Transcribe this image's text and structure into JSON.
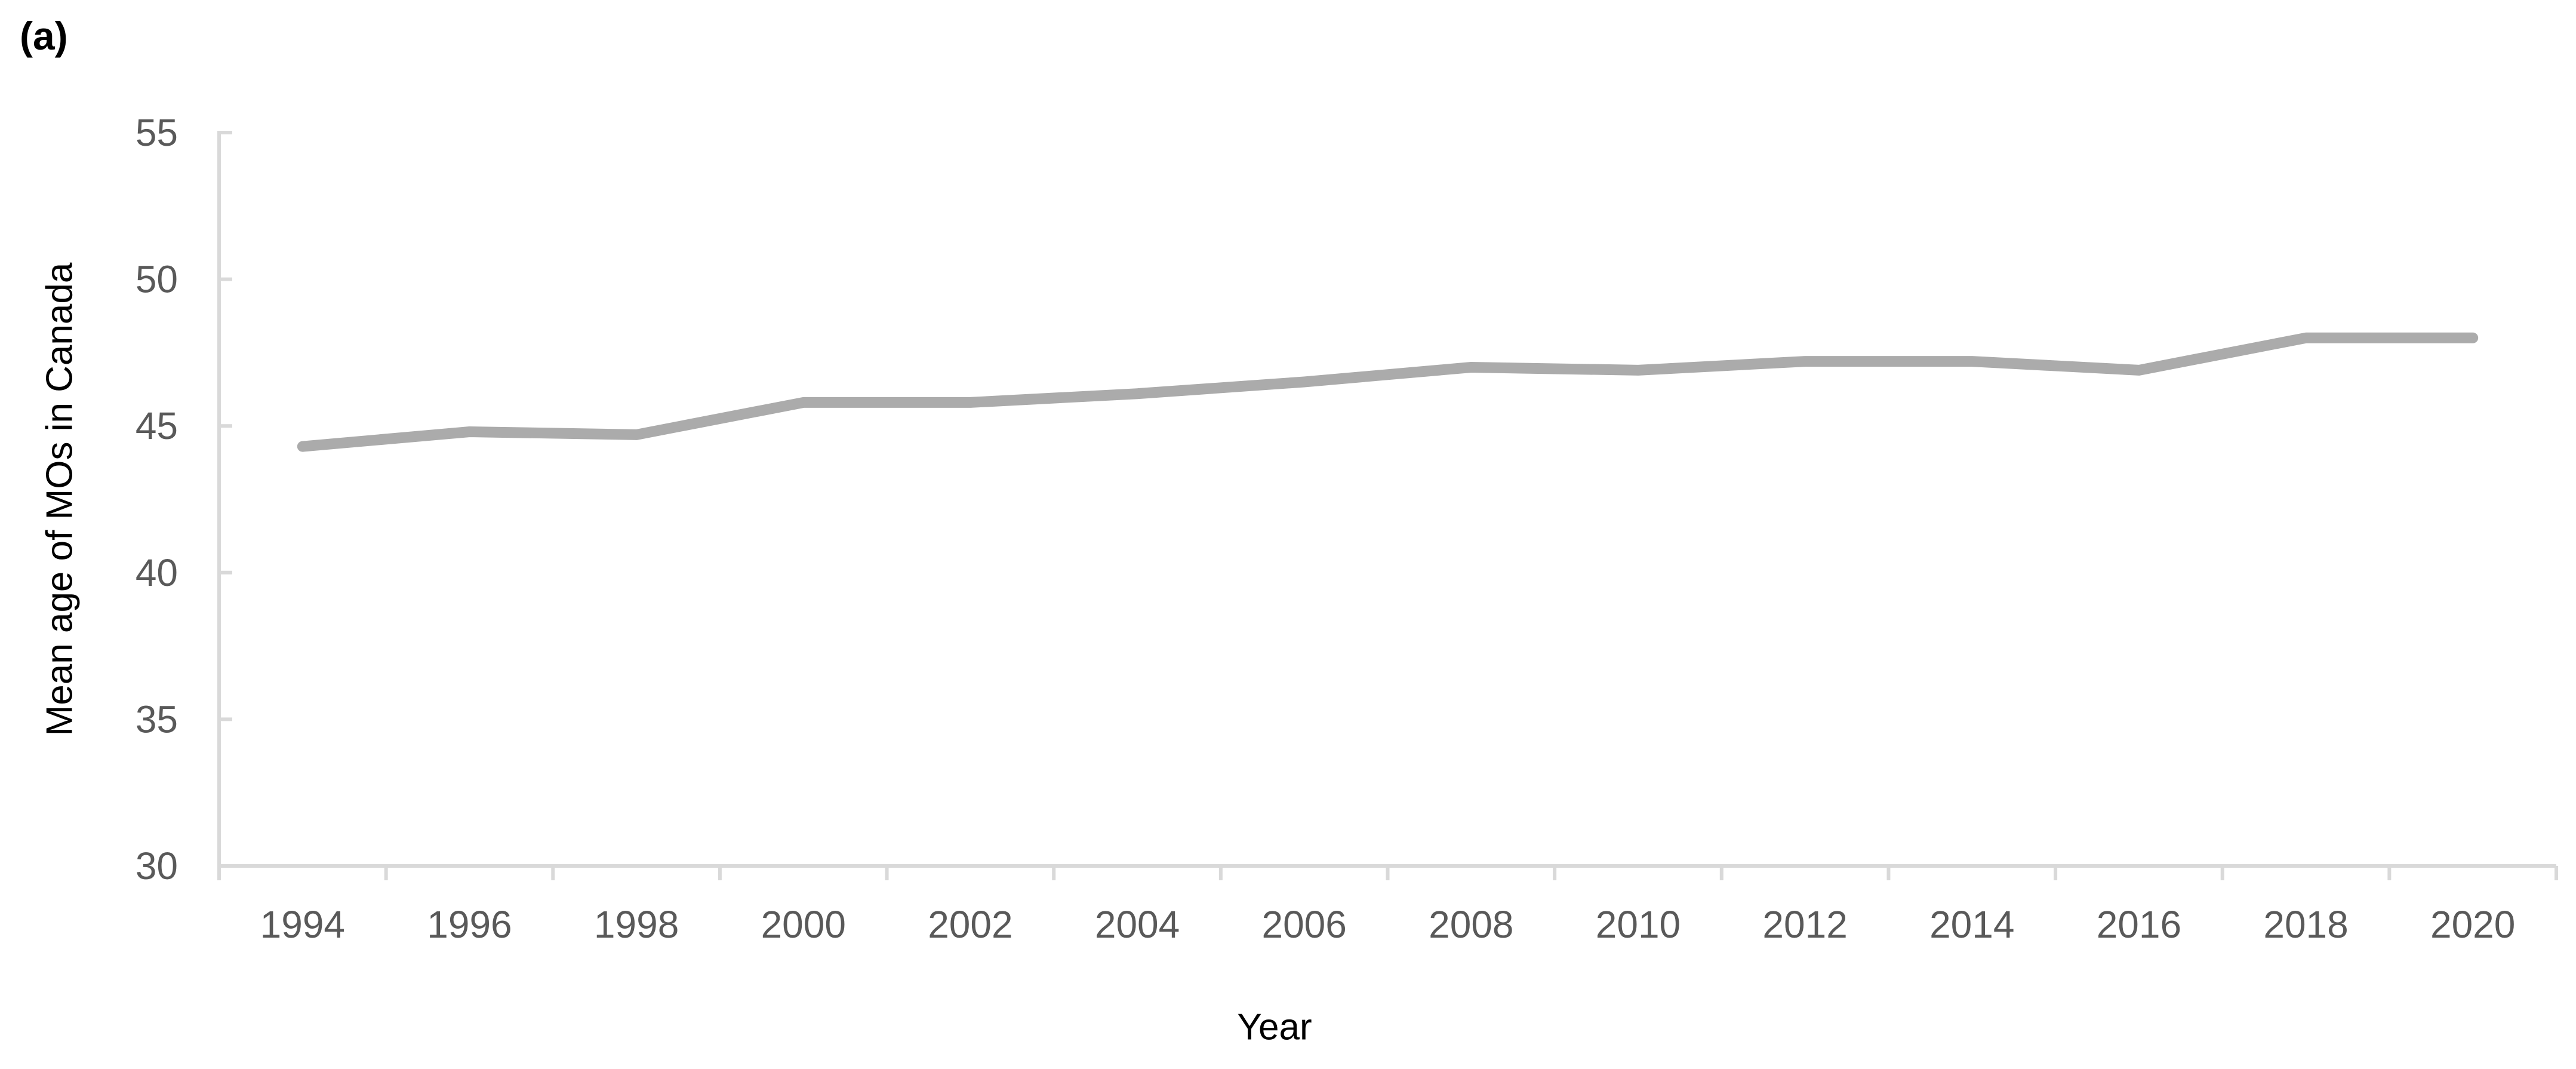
{
  "panel_label": "(a)",
  "chart_data": {
    "type": "line",
    "title": "",
    "xlabel": "Year",
    "ylabel": "Mean age of MOs in Canada",
    "categories": [
      "1994",
      "1996",
      "1998",
      "2000",
      "2002",
      "2004",
      "2006",
      "2008",
      "2010",
      "2012",
      "2014",
      "2016",
      "2018",
      "2020"
    ],
    "series": [
      {
        "name": "Mean age of MOs in Canada",
        "values": [
          44.3,
          44.8,
          44.7,
          45.8,
          45.8,
          46.1,
          46.5,
          47.0,
          46.9,
          47.2,
          47.2,
          46.9,
          48.0,
          48.0
        ]
      }
    ],
    "ylim": [
      30,
      55
    ],
    "yticks": [
      30,
      35,
      40,
      45,
      50,
      55
    ],
    "grid": false,
    "legend": "none",
    "colors": {
      "series_line": "#ababab",
      "axis_line": "#d9d9d9",
      "tick_label": "#595959",
      "title_text": "#000000"
    }
  }
}
